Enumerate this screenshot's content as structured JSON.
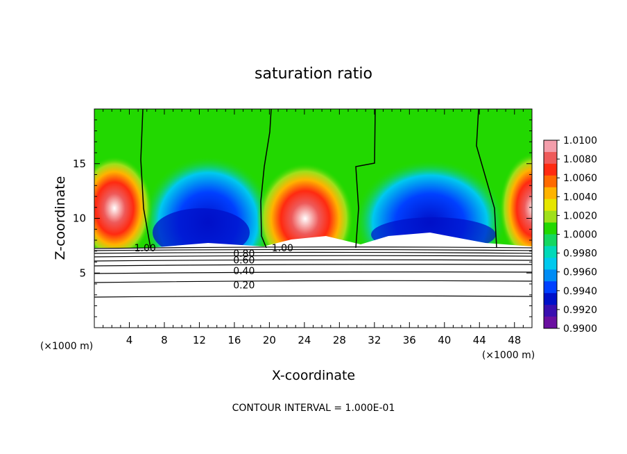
{
  "chart_data": {
    "type": "heatmap",
    "title": "saturation ratio",
    "xlabel": "X-coordinate",
    "ylabel": "Z-coordinate",
    "x_unit": "(×1000 m)",
    "y_unit": "(×1000 m)",
    "xlim": [
      0,
      50
    ],
    "ylim": [
      0,
      20
    ],
    "xticks": [
      "4",
      "8",
      "12",
      "16",
      "20",
      "24",
      "28",
      "32",
      "36",
      "40",
      "44",
      "48"
    ],
    "yticks": [
      "5",
      "10",
      "15"
    ],
    "footer": "CONTOUR INTERVAL = 1.000E-01",
    "colorbar": {
      "min": 0.99,
      "max": 1.01,
      "labels": [
        "1.0100",
        "1.0080",
        "1.0060",
        "1.0040",
        "1.0020",
        "1.0000",
        "0.9980",
        "0.9960",
        "0.9940",
        "0.9920",
        "0.9900"
      ],
      "colors": [
        "#f39eab",
        "#ee5a5a",
        "#ff2a10",
        "#ff6a00",
        "#ffb300",
        "#e6e600",
        "#9fe01a",
        "#22d800",
        "#15d760",
        "#00d9b8",
        "#00c9ee",
        "#008cf5",
        "#0040ff",
        "#0010c8",
        "#3a0fb0",
        "#6a0fa0"
      ]
    },
    "contour_labels": [
      {
        "text": "1.00",
        "x": 5.8,
        "z": 7.3
      },
      {
        "text": "1.00",
        "x": 21.5,
        "z": 7.3
      },
      {
        "text": "0.80",
        "x": 17.1,
        "z": 6.8
      },
      {
        "text": "0.60",
        "x": 17.1,
        "z": 6.2
      },
      {
        "text": "0.40",
        "x": 17.1,
        "z": 5.2
      },
      {
        "text": "0.20",
        "x": 17.1,
        "z": 3.9
      }
    ]
  }
}
